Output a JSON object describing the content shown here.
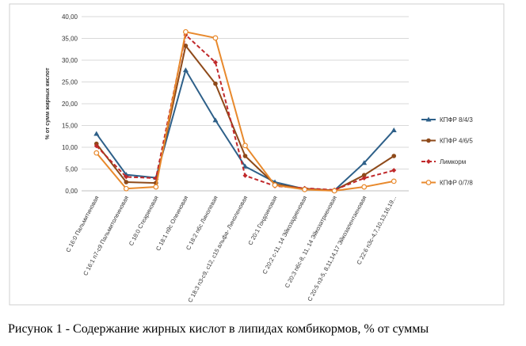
{
  "chart_data": {
    "type": "line",
    "y_label": "% от сумм жирных кислот",
    "categories": [
      "С 16:0 Пальмитиновая",
      "С 16:1 n7-c9 Пальмитолеиновая",
      "С 18:0 Стеариновая",
      "С 18:1 n9c Олеиновая",
      "С 18:2 n6c Линолевая",
      "С 18:3 n3-c9, c12, c15 альфа- Линоленовая",
      "С 20:1 Гондоиновая",
      "С 20:2 c-11, 14 Эйкозадиеновая",
      "С 20:3 n6c-8, 11, 14 Эйкозатриеновая",
      "С 20:5 n3-5, 8,11,14,17 Эйкозапентаеновая",
      "С 22:6 n3c-4,7,10,13,16,19..."
    ],
    "series": [
      {
        "name": "КПФР 8/4/3",
        "color": "#2e6089",
        "marker": "triangle",
        "dash": false,
        "values": [
          13.1,
          3.7,
          3.0,
          27.7,
          16.2,
          5.6,
          2.0,
          0.4,
          0.1,
          6.4,
          13.9
        ]
      },
      {
        "name": "КПФР 4/6/5",
        "color": "#8e4a1a",
        "marker": "circle",
        "dash": false,
        "values": [
          10.8,
          2.0,
          1.8,
          33.3,
          24.6,
          8.0,
          1.5,
          0.5,
          0.1,
          3.6,
          8.0
        ]
      },
      {
        "name": "Лимкорм",
        "color": "#c0282a",
        "marker": "diamond",
        "dash": true,
        "values": [
          10.3,
          3.2,
          2.9,
          35.8,
          29.5,
          3.5,
          1.1,
          0.6,
          0.2,
          2.9,
          4.7
        ]
      },
      {
        "name": "КПФР 0/7/8",
        "color": "#e8892c",
        "marker": "open-circle",
        "dash": false,
        "values": [
          8.7,
          0.5,
          0.9,
          36.5,
          35.1,
          10.4,
          1.3,
          0.3,
          0.0,
          0.9,
          2.2
        ]
      }
    ],
    "ylim": [
      0,
      40
    ],
    "yticks": [
      {
        "value": 0,
        "label": "0,00"
      },
      {
        "value": 5,
        "label": "5,00"
      },
      {
        "value": 10,
        "label": "10,00"
      },
      {
        "value": 15,
        "label": "15,00"
      },
      {
        "value": 20,
        "label": "20,00"
      },
      {
        "value": 25,
        "label": "25,00"
      },
      {
        "value": 30,
        "label": "30,00"
      },
      {
        "value": 35,
        "label": "35,00"
      },
      {
        "value": 40,
        "label": "40,00"
      }
    ],
    "grid": true,
    "legend": "right"
  },
  "caption": "Рисунок 1 - Содержание жирных кислот в липидах комбикормов, % от суммы"
}
